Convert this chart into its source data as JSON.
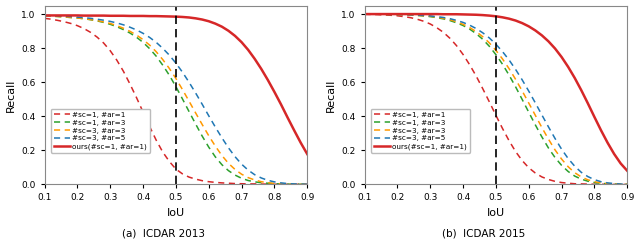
{
  "title_a": "(a)  ICDAR 2013",
  "title_b": "(b)  ICDAR 2015",
  "xlabel": "IoU",
  "ylabel": "Recall",
  "xlim": [
    0.1,
    0.9
  ],
  "ylim": [
    0.0,
    1.05
  ],
  "xticks": [
    0.1,
    0.2,
    0.3,
    0.4,
    0.5,
    0.6,
    0.7,
    0.8,
    0.9
  ],
  "yticks": [
    0.0,
    0.2,
    0.4,
    0.6,
    0.8,
    1.0
  ],
  "vline_x": 0.5,
  "colors": {
    "sc1_ar1": "#d62728",
    "sc1_ar3": "#2ca02c",
    "sc3_ar3": "#ff9900",
    "sc3_ar5": "#1f77b4",
    "ours": "#d62728"
  },
  "legend_labels": [
    "#sc=1, #ar=1",
    "#sc=1, #ar=3",
    "#sc=3, #ar=3",
    "#sc=3, #ar=5",
    "ours(#sc=1, #ar=1)"
  ],
  "iou_x": [
    0.1,
    0.12,
    0.14,
    0.16,
    0.18,
    0.2,
    0.22,
    0.24,
    0.26,
    0.28,
    0.3,
    0.32,
    0.34,
    0.36,
    0.38,
    0.4,
    0.42,
    0.44,
    0.46,
    0.48,
    0.5,
    0.52,
    0.54,
    0.56,
    0.58,
    0.6,
    0.62,
    0.64,
    0.66,
    0.68,
    0.7,
    0.72,
    0.74,
    0.76,
    0.78,
    0.8,
    0.82,
    0.84,
    0.86,
    0.88,
    0.9
  ],
  "icdar2013": {
    "sc1_ar1": [
      0.975,
      0.97,
      0.963,
      0.955,
      0.945,
      0.932,
      0.915,
      0.893,
      0.865,
      0.83,
      0.785,
      0.73,
      0.665,
      0.59,
      0.51,
      0.425,
      0.34,
      0.26,
      0.19,
      0.135,
      0.09,
      0.062,
      0.043,
      0.031,
      0.022,
      0.016,
      0.012,
      0.009,
      0.007,
      0.005,
      0.004,
      0.003,
      0.003,
      0.002,
      0.002,
      0.001,
      0.001,
      0.001,
      0.001,
      0.001,
      0.001
    ],
    "sc1_ar3": [
      0.99,
      0.988,
      0.986,
      0.983,
      0.98,
      0.977,
      0.973,
      0.967,
      0.96,
      0.951,
      0.94,
      0.926,
      0.909,
      0.889,
      0.864,
      0.834,
      0.797,
      0.753,
      0.7,
      0.641,
      0.574,
      0.502,
      0.428,
      0.355,
      0.284,
      0.219,
      0.162,
      0.116,
      0.081,
      0.055,
      0.036,
      0.023,
      0.015,
      0.01,
      0.007,
      0.004,
      0.003,
      0.002,
      0.001,
      0.001,
      0.001
    ],
    "sc3_ar3": [
      0.99,
      0.988,
      0.986,
      0.983,
      0.98,
      0.977,
      0.973,
      0.968,
      0.962,
      0.954,
      0.945,
      0.932,
      0.917,
      0.899,
      0.877,
      0.85,
      0.818,
      0.779,
      0.733,
      0.681,
      0.622,
      0.557,
      0.489,
      0.42,
      0.352,
      0.286,
      0.225,
      0.17,
      0.124,
      0.088,
      0.06,
      0.04,
      0.026,
      0.016,
      0.01,
      0.006,
      0.004,
      0.002,
      0.001,
      0.001,
      0.001
    ],
    "sc3_ar5": [
      0.992,
      0.991,
      0.989,
      0.987,
      0.985,
      0.982,
      0.979,
      0.975,
      0.97,
      0.964,
      0.957,
      0.948,
      0.937,
      0.923,
      0.907,
      0.887,
      0.863,
      0.834,
      0.799,
      0.759,
      0.712,
      0.659,
      0.6,
      0.537,
      0.471,
      0.403,
      0.337,
      0.274,
      0.215,
      0.163,
      0.119,
      0.084,
      0.057,
      0.038,
      0.024,
      0.015,
      0.009,
      0.005,
      0.003,
      0.002,
      0.001
    ],
    "ours": [
      0.992,
      0.992,
      0.992,
      0.992,
      0.992,
      0.992,
      0.991,
      0.991,
      0.991,
      0.991,
      0.99,
      0.99,
      0.99,
      0.989,
      0.989,
      0.989,
      0.988,
      0.988,
      0.987,
      0.986,
      0.985,
      0.983,
      0.98,
      0.975,
      0.968,
      0.958,
      0.944,
      0.926,
      0.902,
      0.872,
      0.835,
      0.79,
      0.737,
      0.678,
      0.613,
      0.543,
      0.47,
      0.393,
      0.318,
      0.245,
      0.178
    ]
  },
  "icdar2015": {
    "sc1_ar1": [
      0.999,
      0.998,
      0.997,
      0.995,
      0.993,
      0.99,
      0.985,
      0.979,
      0.97,
      0.958,
      0.942,
      0.92,
      0.893,
      0.858,
      0.815,
      0.763,
      0.703,
      0.636,
      0.562,
      0.485,
      0.406,
      0.329,
      0.257,
      0.193,
      0.14,
      0.098,
      0.067,
      0.044,
      0.029,
      0.018,
      0.011,
      0.007,
      0.004,
      0.003,
      0.002,
      0.001,
      0.001,
      0.001,
      0.0,
      0.0,
      0.0
    ],
    "sc1_ar3": [
      0.999,
      0.999,
      0.999,
      0.998,
      0.998,
      0.997,
      0.996,
      0.994,
      0.992,
      0.989,
      0.985,
      0.979,
      0.972,
      0.962,
      0.949,
      0.933,
      0.912,
      0.885,
      0.852,
      0.811,
      0.762,
      0.706,
      0.642,
      0.573,
      0.499,
      0.424,
      0.35,
      0.279,
      0.214,
      0.158,
      0.112,
      0.076,
      0.049,
      0.031,
      0.019,
      0.011,
      0.006,
      0.004,
      0.002,
      0.001,
      0.001
    ],
    "sc3_ar3": [
      0.999,
      0.999,
      0.999,
      0.998,
      0.998,
      0.997,
      0.996,
      0.995,
      0.993,
      0.99,
      0.987,
      0.982,
      0.975,
      0.967,
      0.955,
      0.94,
      0.921,
      0.897,
      0.867,
      0.831,
      0.787,
      0.737,
      0.68,
      0.617,
      0.549,
      0.478,
      0.406,
      0.334,
      0.266,
      0.203,
      0.149,
      0.104,
      0.069,
      0.044,
      0.027,
      0.016,
      0.009,
      0.005,
      0.003,
      0.001,
      0.001
    ],
    "sc3_ar5": [
      0.999,
      0.999,
      0.999,
      0.999,
      0.998,
      0.998,
      0.997,
      0.996,
      0.994,
      0.992,
      0.989,
      0.985,
      0.98,
      0.973,
      0.963,
      0.951,
      0.935,
      0.915,
      0.89,
      0.86,
      0.823,
      0.78,
      0.731,
      0.675,
      0.614,
      0.548,
      0.479,
      0.408,
      0.338,
      0.27,
      0.207,
      0.152,
      0.107,
      0.071,
      0.046,
      0.028,
      0.016,
      0.009,
      0.005,
      0.002,
      0.001
    ],
    "ours": [
      1.0,
      1.0,
      1.0,
      1.0,
      1.0,
      1.0,
      1.0,
      1.0,
      1.0,
      1.0,
      1.0,
      1.0,
      0.999,
      0.999,
      0.999,
      0.998,
      0.997,
      0.996,
      0.994,
      0.991,
      0.987,
      0.981,
      0.973,
      0.962,
      0.947,
      0.928,
      0.904,
      0.875,
      0.84,
      0.798,
      0.748,
      0.69,
      0.625,
      0.553,
      0.476,
      0.396,
      0.318,
      0.245,
      0.179,
      0.123,
      0.08
    ]
  }
}
